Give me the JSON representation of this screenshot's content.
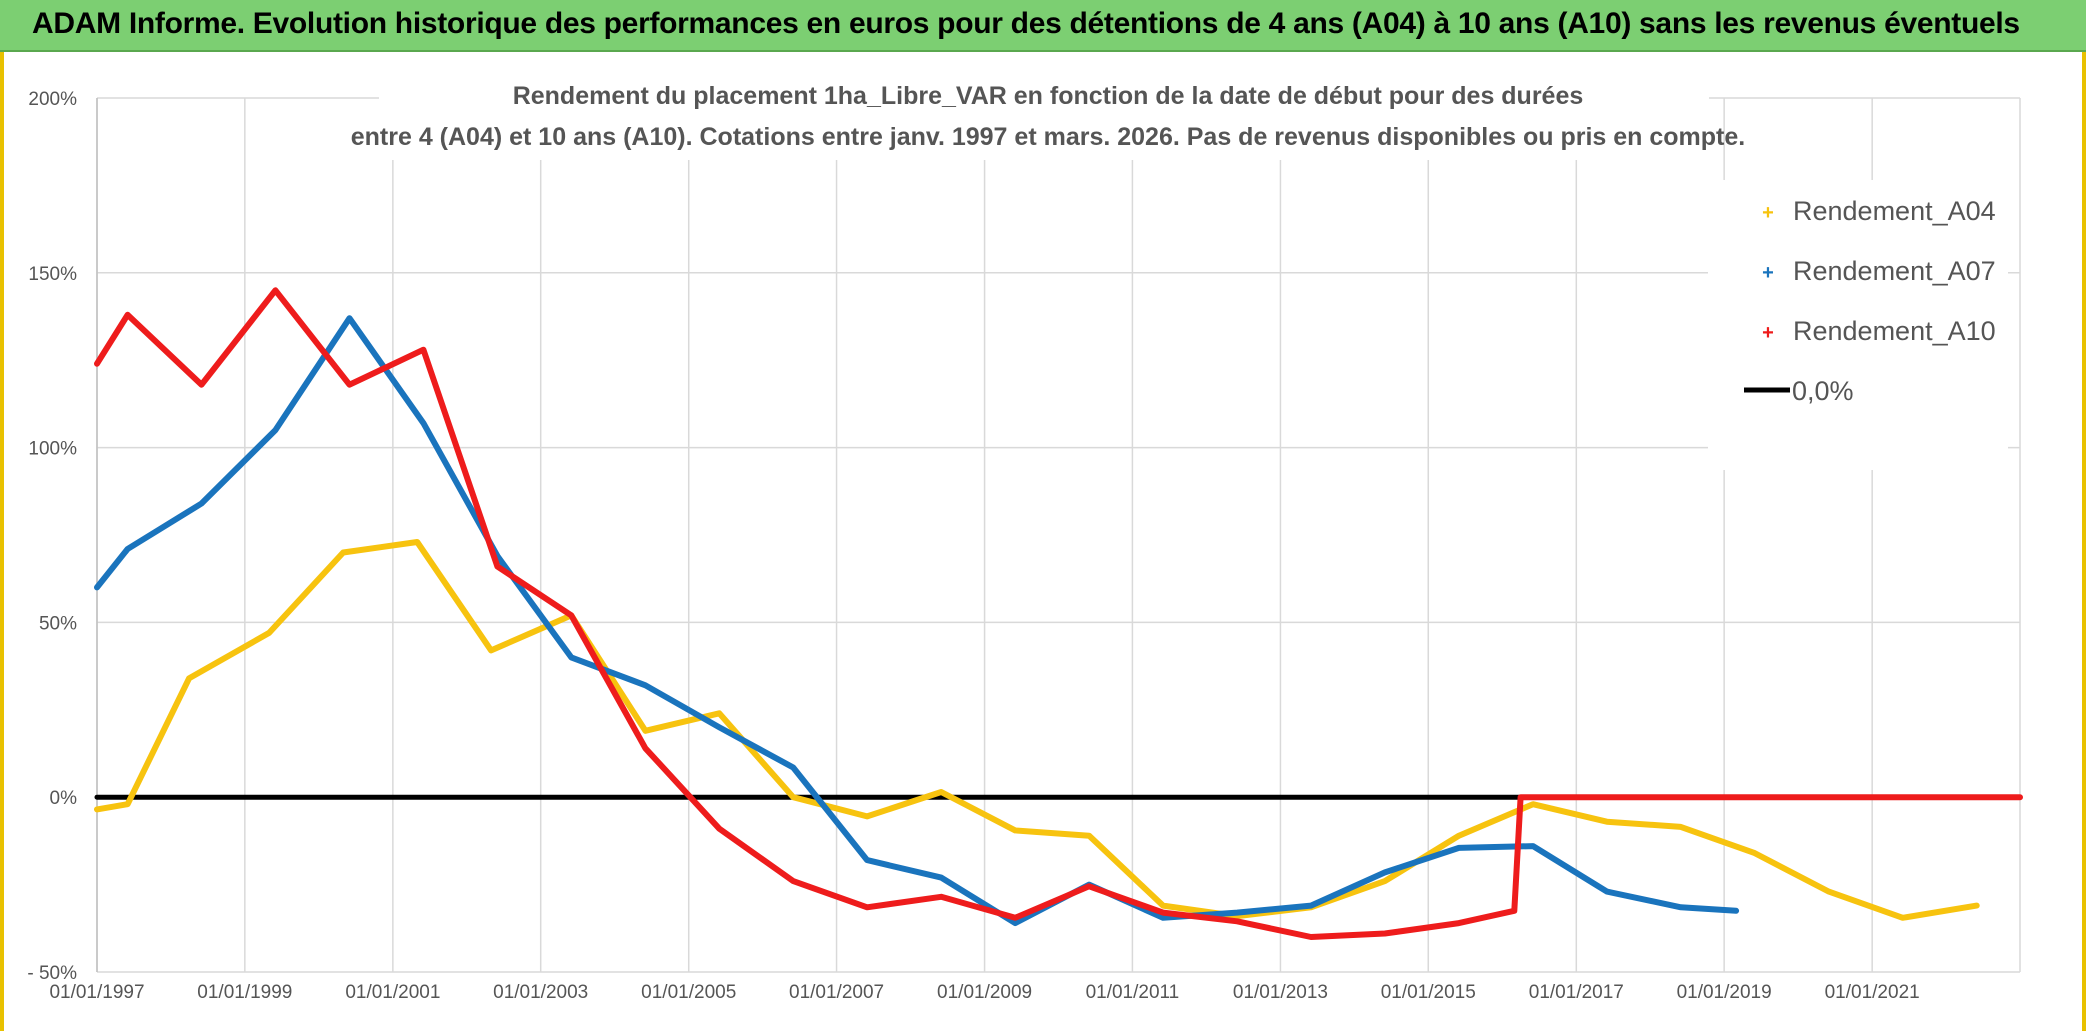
{
  "banner": {
    "title": "ADAM Informe. Evolution historique des performances en euros pour des détentions de 4 ans (A04) à 10 ans (A10) sans les revenus éventuels"
  },
  "colors": {
    "banner_bg": "#7ccf72",
    "A04": "#f7c30f",
    "A07": "#1a74bd",
    "A10": "#ee1c1c",
    "zero": "#000000",
    "grid": "#d9d9d9"
  },
  "chart_data": {
    "type": "line",
    "title": [
      "Rendement du placement 1ha_Libre_VAR en fonction de la date de début pour des durées",
      "entre 4 (A04) et 10 ans (A10). Cotations entre janv. 1997 et mars. 2026. Pas de revenus disponibles ou pris en compte."
    ],
    "xlabel": "",
    "ylabel": "",
    "xlim": [
      "1997-01-01",
      "2023-01-01"
    ],
    "ylim": [
      -50,
      200
    ],
    "y_unit": "%",
    "y_ticks": [
      -50,
      0,
      50,
      100,
      150,
      200
    ],
    "y_tick_labels": [
      "- 50%",
      "0%",
      "50%",
      "100%",
      "150%",
      "200%"
    ],
    "x_ticks": [
      "1997-01-01",
      "1999-01-01",
      "2001-01-01",
      "2003-01-01",
      "2005-01-01",
      "2007-01-01",
      "2009-01-01",
      "2011-01-01",
      "2013-01-01",
      "2015-01-01",
      "2017-01-01",
      "2019-01-01",
      "2021-01-01"
    ],
    "x_tick_labels": [
      "01/01/1997",
      "01/01/1999",
      "01/01/2001",
      "01/01/2003",
      "01/01/2005",
      "01/01/2007",
      "01/01/2009",
      "01/01/2011",
      "01/01/2013",
      "01/01/2015",
      "01/01/2017",
      "01/01/2019",
      "01/01/2021"
    ],
    "grid": true,
    "legend_position": "top-right",
    "series": [
      {
        "name": "Rendement_A04",
        "color": "#f7c30f",
        "points": [
          [
            "1997-01-01",
            -3.5
          ],
          [
            "1997-06-01",
            -2
          ],
          [
            "1998-04-01",
            34
          ],
          [
            "1999-05-01",
            47
          ],
          [
            "2000-05-01",
            70
          ],
          [
            "2001-05-01",
            73
          ],
          [
            "2002-05-01",
            42
          ],
          [
            "2003-06-01",
            52
          ],
          [
            "2004-06-01",
            19
          ],
          [
            "2005-06-01",
            24
          ],
          [
            "2006-06-01",
            0
          ],
          [
            "2007-06-01",
            -5.5
          ],
          [
            "2008-06-01",
            1.5
          ],
          [
            "2009-06-01",
            -9.5
          ],
          [
            "2010-06-01",
            -11
          ],
          [
            "2011-06-01",
            -31
          ],
          [
            "2012-06-01",
            -34
          ],
          [
            "2013-06-01",
            -31.5
          ],
          [
            "2014-06-01",
            -24
          ],
          [
            "2015-06-01",
            -11
          ],
          [
            "2016-06-01",
            -2
          ],
          [
            "2017-06-01",
            -7
          ],
          [
            "2018-06-01",
            -8.5
          ],
          [
            "2019-06-01",
            -16
          ],
          [
            "2020-06-01",
            -27
          ],
          [
            "2021-06-01",
            -34.5
          ],
          [
            "2022-06-01",
            -31
          ]
        ]
      },
      {
        "name": "Rendement_A07",
        "color": "#1a74bd",
        "points": [
          [
            "1997-01-01",
            60
          ],
          [
            "1997-06-01",
            71
          ],
          [
            "1998-06-01",
            84
          ],
          [
            "1999-06-01",
            105
          ],
          [
            "2000-06-01",
            137
          ],
          [
            "2001-06-01",
            107
          ],
          [
            "2002-06-01",
            69
          ],
          [
            "2003-06-01",
            40
          ],
          [
            "2004-06-01",
            32
          ],
          [
            "2005-06-01",
            20
          ],
          [
            "2006-06-01",
            8.5
          ],
          [
            "2007-06-01",
            -18
          ],
          [
            "2008-06-01",
            -23
          ],
          [
            "2009-06-01",
            -36
          ],
          [
            "2010-06-01",
            -25
          ],
          [
            "2011-06-01",
            -34.5
          ],
          [
            "2012-06-01",
            -33
          ],
          [
            "2013-06-01",
            -31
          ],
          [
            "2014-06-01",
            -21.5
          ],
          [
            "2015-06-01",
            -14.5
          ],
          [
            "2016-06-01",
            -14
          ],
          [
            "2017-06-01",
            -27
          ],
          [
            "2018-06-01",
            -31.5
          ],
          [
            "2019-03-01",
            -32.5
          ]
        ]
      },
      {
        "name": "Rendement_A10",
        "color": "#ee1c1c",
        "points": [
          [
            "1997-01-01",
            124
          ],
          [
            "1997-06-01",
            138
          ],
          [
            "1998-06-01",
            118
          ],
          [
            "1999-06-01",
            145
          ],
          [
            "2000-06-01",
            118
          ],
          [
            "2001-06-01",
            128
          ],
          [
            "2002-06-01",
            66
          ],
          [
            "2003-06-01",
            52
          ],
          [
            "2004-06-01",
            14
          ],
          [
            "2005-06-01",
            -9
          ],
          [
            "2006-06-01",
            -24
          ],
          [
            "2007-06-01",
            -31.5
          ],
          [
            "2008-06-01",
            -28.5
          ],
          [
            "2009-06-01",
            -34.5
          ],
          [
            "2010-06-01",
            -25.5
          ],
          [
            "2011-06-01",
            -33
          ],
          [
            "2012-06-01",
            -35.5
          ],
          [
            "2013-06-01",
            -40
          ],
          [
            "2014-06-01",
            -39
          ],
          [
            "2015-06-01",
            -36
          ],
          [
            "2016-03-01",
            -32.5
          ],
          [
            "2016-04-01",
            0
          ],
          [
            "2023-01-01",
            0
          ]
        ]
      },
      {
        "name": "0,0%",
        "color": "#000000",
        "points": [
          [
            "1997-01-01",
            0
          ],
          [
            "2023-01-01",
            0
          ]
        ]
      }
    ]
  }
}
